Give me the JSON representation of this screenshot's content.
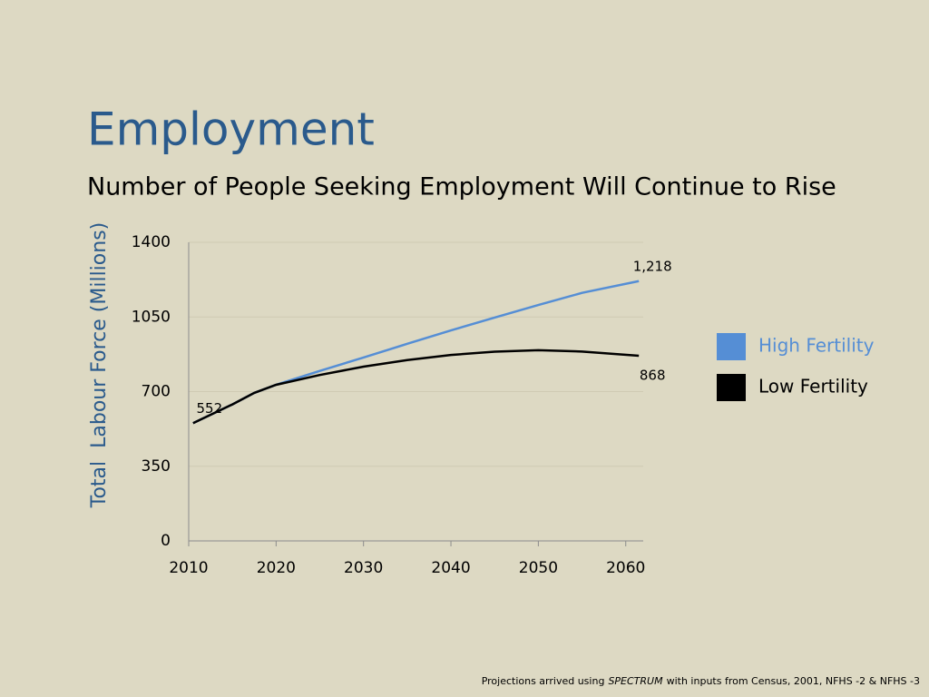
{
  "chart_data": {
    "type": "line",
    "title": "Employment",
    "subtitle": "Number of People Seeking Employment Will Continue to Rise",
    "y_label": "Total  Labour Force (Millions)",
    "x": [
      2010.5,
      2015,
      2017.5,
      2020,
      2025,
      2030,
      2035,
      2040,
      2045,
      2050,
      2055,
      2061.5
    ],
    "series": [
      {
        "name": "High Fertility",
        "color": "#558ed5",
        "values": [
          552,
          640,
          694,
          732,
          797,
          860,
          924,
          987,
          1047,
          1106,
          1163,
          1218
        ],
        "value_labels": [
          null,
          null,
          null,
          null,
          null,
          null,
          null,
          null,
          null,
          null,
          null,
          "1,218"
        ]
      },
      {
        "name": "Low Fertility",
        "color": "#000000",
        "values": [
          552,
          640,
          694,
          732,
          778,
          817,
          848,
          872,
          887,
          894,
          888,
          868
        ],
        "value_labels": [
          "552",
          null,
          null,
          null,
          null,
          null,
          null,
          null,
          null,
          null,
          null,
          "868"
        ]
      }
    ],
    "xlim": [
      2010,
      2062
    ],
    "xticks": [
      2010,
      2020,
      2030,
      2040,
      2050,
      2060
    ],
    "ylim": [
      0,
      1400
    ],
    "yticks": [
      0,
      350,
      700,
      1050,
      1400
    ],
    "grid": true,
    "legend": "right"
  },
  "footnote": [
    "Projections arrived using",
    "SPECTRUM",
    "with inputs from Census, 2001, NFHS -2 & NFHS -3"
  ]
}
